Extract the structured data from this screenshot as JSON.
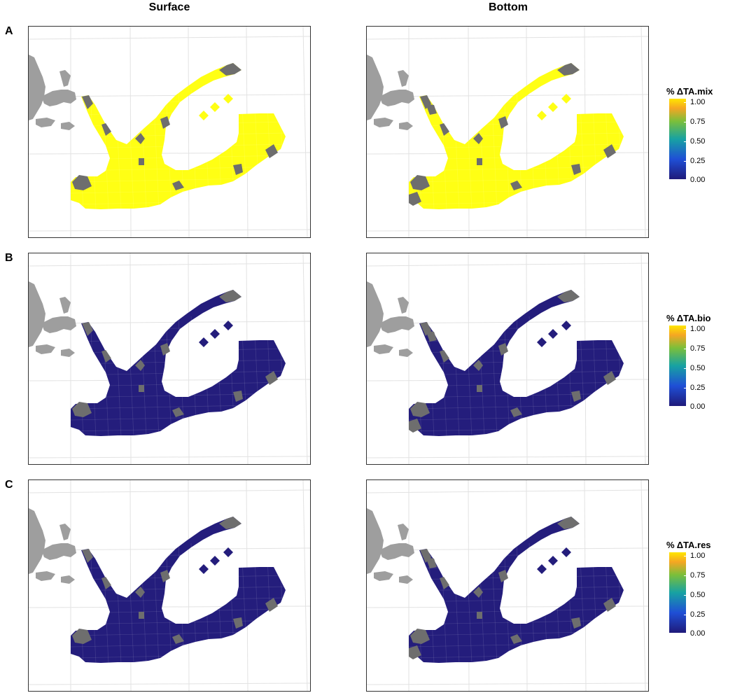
{
  "columns": {
    "surface": "Surface",
    "bottom": "Bottom"
  },
  "rows": [
    {
      "letter": "A",
      "legend_title": "% ΔTA.mix",
      "fill_value": 1.0
    },
    {
      "letter": "B",
      "legend_title": "% ΔTA.bio",
      "fill_value": 0.0
    },
    {
      "letter": "C",
      "legend_title": "% ΔTA.res",
      "fill_value": 0.0
    }
  ],
  "legend_ticks": [
    "1.00",
    "0.75",
    "0.50",
    "0.25",
    "0.00"
  ],
  "colors": {
    "value_high": "#ffff14",
    "value_low": "#241d7c",
    "missing_cell": "#6e6e6e",
    "land": "#9e9e9e",
    "graticule": "#e2e2e2"
  }
}
